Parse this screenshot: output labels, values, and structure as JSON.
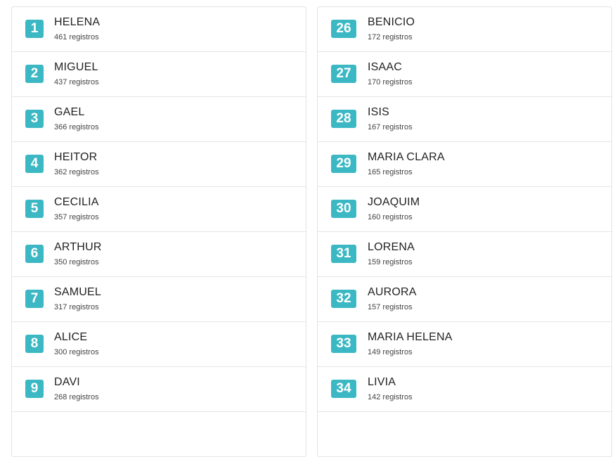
{
  "badge_color": "#3bb8c3",
  "left_column": [
    {
      "rank": "1",
      "name": "HELENA",
      "count": "461 registros"
    },
    {
      "rank": "2",
      "name": "MIGUEL",
      "count": "437 registros"
    },
    {
      "rank": "3",
      "name": "GAEL",
      "count": "366 registros"
    },
    {
      "rank": "4",
      "name": "HEITOR",
      "count": "362 registros"
    },
    {
      "rank": "5",
      "name": "CECILIA",
      "count": "357 registros"
    },
    {
      "rank": "6",
      "name": "ARTHUR",
      "count": "350 registros"
    },
    {
      "rank": "7",
      "name": "SAMUEL",
      "count": "317 registros"
    },
    {
      "rank": "8",
      "name": "ALICE",
      "count": "300 registros"
    },
    {
      "rank": "9",
      "name": "DAVI",
      "count": "268 registros"
    }
  ],
  "right_column": [
    {
      "rank": "26",
      "name": "BENICIO",
      "count": "172 registros"
    },
    {
      "rank": "27",
      "name": "ISAAC",
      "count": "170 registros"
    },
    {
      "rank": "28",
      "name": "ISIS",
      "count": "167 registros"
    },
    {
      "rank": "29",
      "name": "MARIA CLARA",
      "count": "165 registros"
    },
    {
      "rank": "30",
      "name": "JOAQUIM",
      "count": "160 registros"
    },
    {
      "rank": "31",
      "name": "LORENA",
      "count": "159 registros"
    },
    {
      "rank": "32",
      "name": "AURORA",
      "count": "157 registros"
    },
    {
      "rank": "33",
      "name": "MARIA HELENA",
      "count": "149 registros"
    },
    {
      "rank": "34",
      "name": "LIVIA",
      "count": "142 registros"
    }
  ]
}
